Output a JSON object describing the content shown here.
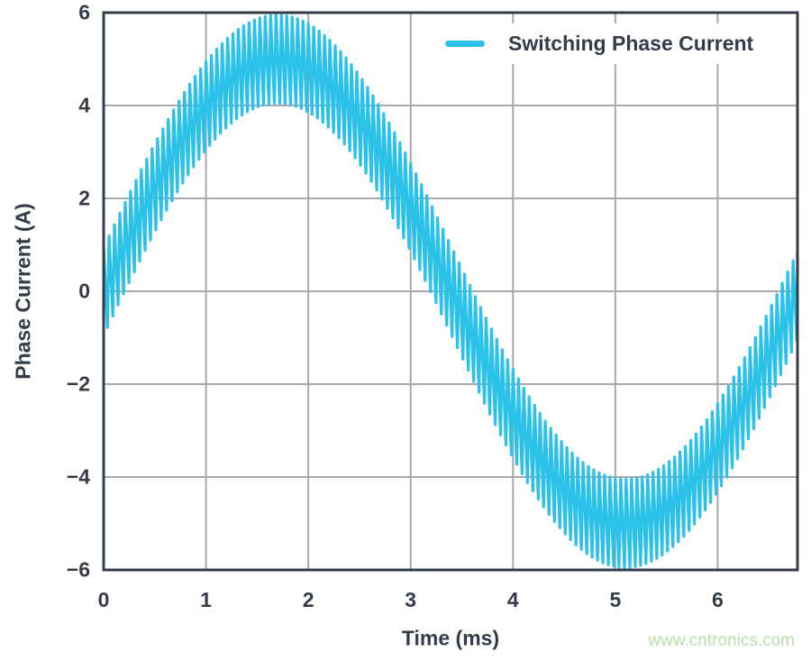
{
  "colors": {
    "line": "#2bc1e8",
    "grid": "#a7a9ac",
    "axis": "#333c48",
    "text": "#333c48",
    "watermark": "#b9dfaa",
    "background": "#ffffff"
  },
  "chart_data": {
    "type": "line",
    "title": "",
    "xlabel": "Time (ms)",
    "ylabel": "Phase Current (A)",
    "xlim": [
      0,
      6.78
    ],
    "ylim": [
      -6,
      6
    ],
    "x_ticks": [
      0,
      1,
      2,
      3,
      4,
      5,
      6
    ],
    "y_ticks": [
      -6,
      -4,
      -2,
      0,
      2,
      4,
      6
    ],
    "grid": true,
    "legend": {
      "position": "top-right",
      "entries": [
        {
          "label": "Switching Phase Current",
          "color": "#2bc1e8"
        }
      ]
    },
    "series": [
      {
        "name": "Switching Phase Current",
        "model": "sine_with_switching_ripple",
        "sine_amplitude_A": 5.0,
        "sine_period_ms": 6.8,
        "sine_phase_deg": 0,
        "ripple_amplitude_A": 0.95,
        "ripple_shape": "asymmetric-triangle",
        "ripple_rise_fraction": 0.3,
        "switching_cycles_per_ms": 19,
        "t_start_ms": 0,
        "t_end_ms": 6.78,
        "peak_envelope_A": [
          4.05,
          5.95
        ],
        "zero_crossings_ms": [
          0,
          3.4
        ],
        "trough_center_ms": 5.1
      }
    ]
  },
  "watermark": {
    "text": "www.cntronics.com"
  }
}
